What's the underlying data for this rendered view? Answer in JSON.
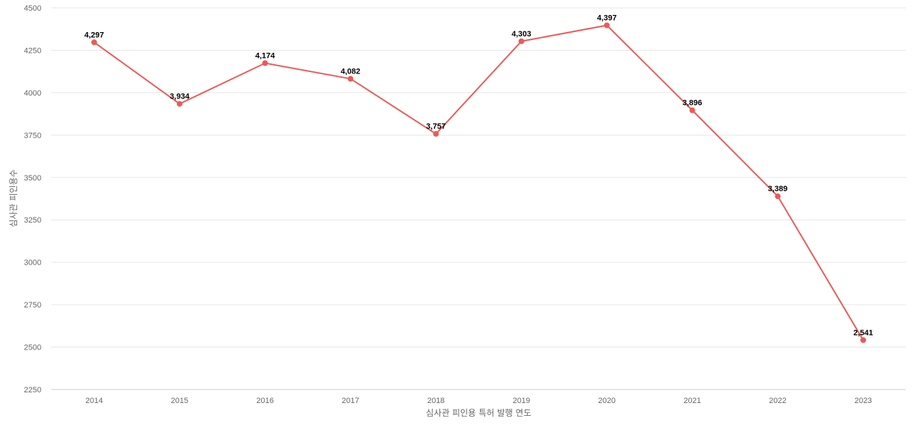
{
  "chart_data": {
    "type": "line",
    "title": "",
    "xlabel": "심사관 피인용 특허 발행 연도",
    "ylabel": "심사관 피인용수",
    "categories": [
      "2014",
      "2015",
      "2016",
      "2017",
      "2018",
      "2019",
      "2020",
      "2021",
      "2022",
      "2023"
    ],
    "series": [
      {
        "values": [
          4297,
          3934,
          4174,
          4082,
          3757,
          4303,
          4397,
          3896,
          3389,
          2541
        ],
        "labels": [
          "4,297",
          "3,934",
          "4,174",
          "4,082",
          "3,757",
          "4,303",
          "4,397",
          "3,896",
          "3,389",
          "2,541"
        ],
        "color": "#eb5a5a"
      }
    ],
    "ylim": [
      2250,
      4500
    ],
    "yticks": [
      "2250",
      "2500",
      "2750",
      "3000",
      "3250",
      "3500",
      "3750",
      "4000",
      "4250",
      "4500"
    ],
    "grid": true,
    "legend": "none"
  }
}
